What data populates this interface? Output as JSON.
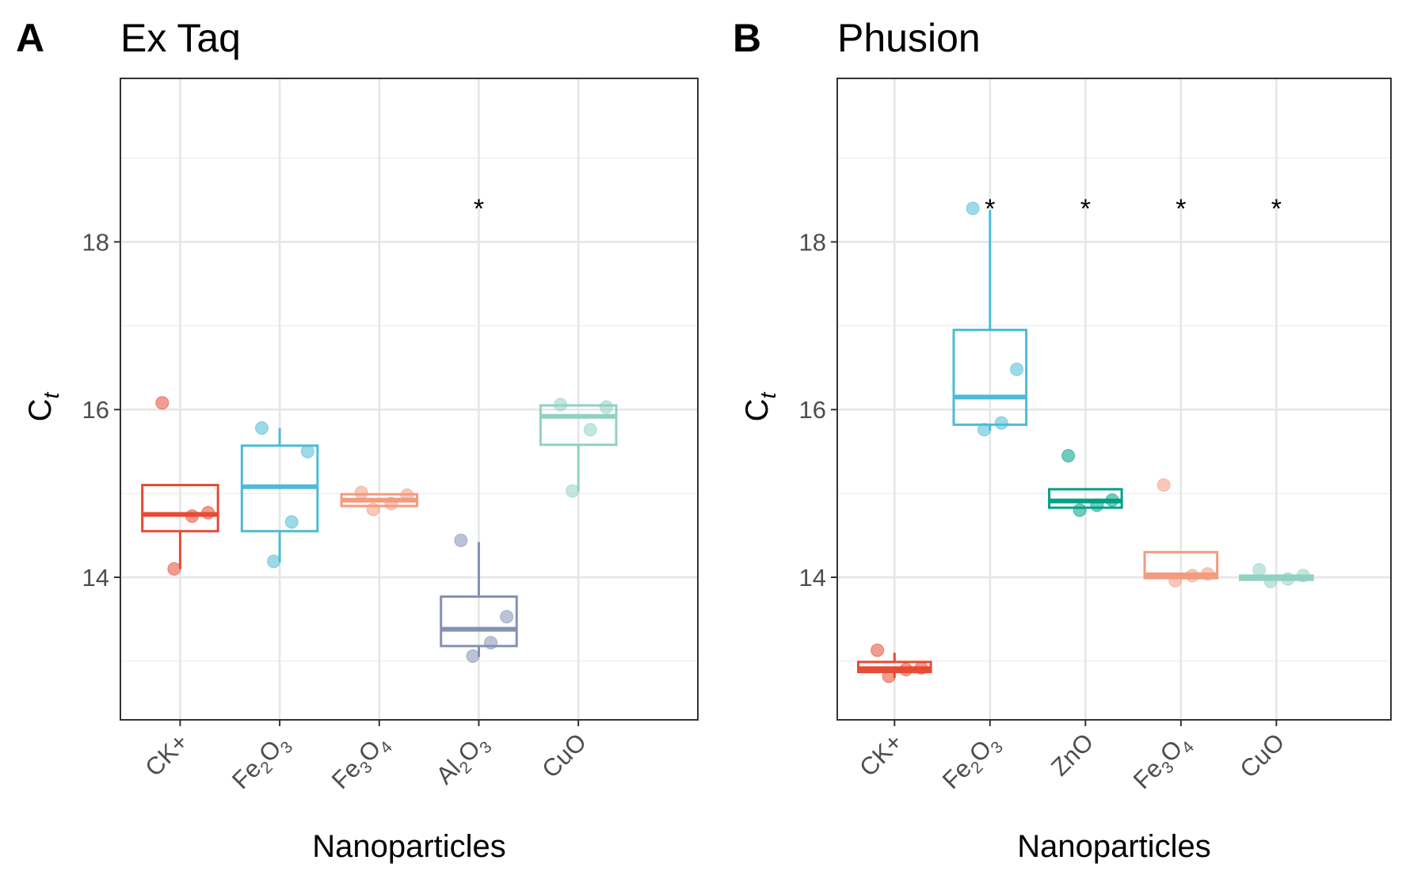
{
  "chart_data": [
    {
      "type": "box",
      "panel_letter": "A",
      "title": "Ex Taq",
      "xlabel": "Nanoparticles",
      "ylabel_main": "C",
      "ylabel_sub": "t",
      "ylim": [
        12.3,
        19.95
      ],
      "yticks": [
        14,
        16,
        18
      ],
      "ytick_labels": [
        "14",
        "16",
        "18"
      ],
      "grid": true,
      "categories": [
        {
          "label": "CK+",
          "main": "CK+",
          "subs": []
        },
        {
          "label": "Fe2O3",
          "main": "Fe",
          "subs": [
            "2",
            "O",
            "3"
          ]
        },
        {
          "label": "Fe3O4",
          "main": "Fe",
          "subs": [
            "3",
            "O",
            "4"
          ]
        },
        {
          "label": "Al2O3",
          "main": "Al",
          "subs": [
            "2",
            "O",
            "3"
          ]
        },
        {
          "label": "CuO",
          "main": "CuO",
          "subs": []
        }
      ],
      "boxes": [
        {
          "category": "CK+",
          "color": "#E64B35",
          "q1": 14.55,
          "median": 14.75,
          "q3": 15.1,
          "whisker_low": 14.1,
          "whisker_high": 15.1,
          "points": [
            16.08,
            14.77,
            14.73,
            14.1
          ],
          "significant": false
        },
        {
          "category": "Fe2O3",
          "color": "#4DBBD5",
          "q1": 14.55,
          "median": 15.08,
          "q3": 15.57,
          "whisker_low": 14.18,
          "whisker_high": 15.78,
          "points": [
            15.78,
            15.5,
            14.66,
            14.19
          ],
          "significant": false
        },
        {
          "category": "Fe3O4",
          "color": "#F39B7F",
          "q1": 14.85,
          "median": 14.92,
          "q3": 14.99,
          "whisker_low": 14.85,
          "whisker_high": 14.99,
          "points": [
            15.01,
            14.98,
            14.88,
            14.81
          ],
          "significant": false
        },
        {
          "category": "Al2O3",
          "color": "#8491B4",
          "q1": 13.18,
          "median": 13.38,
          "q3": 13.77,
          "whisker_low": 13.05,
          "whisker_high": 14.42,
          "points": [
            14.44,
            13.53,
            13.22,
            13.06
          ],
          "significant": true
        },
        {
          "category": "CuO",
          "color": "#91D1C2",
          "q1": 15.58,
          "median": 15.92,
          "q3": 16.05,
          "whisker_low": 15.02,
          "whisker_high": 16.05,
          "points": [
            16.06,
            16.03,
            15.76,
            15.03
          ],
          "significant": false
        }
      ],
      "significance_marker": "*"
    },
    {
      "type": "box",
      "panel_letter": "B",
      "title": "Phusion",
      "xlabel": "Nanoparticles",
      "ylabel_main": "C",
      "ylabel_sub": "t",
      "ylim": [
        12.3,
        19.95
      ],
      "yticks": [
        14,
        16,
        18
      ],
      "ytick_labels": [
        "14",
        "16",
        "18"
      ],
      "grid": true,
      "categories": [
        {
          "label": "CK+",
          "main": "CK+",
          "subs": []
        },
        {
          "label": "Fe2O3",
          "main": "Fe",
          "subs": [
            "2",
            "O",
            "3"
          ]
        },
        {
          "label": "ZnO",
          "main": "ZnO",
          "subs": []
        },
        {
          "label": "Fe3O4",
          "main": "Fe",
          "subs": [
            "3",
            "O",
            "4"
          ]
        },
        {
          "label": "CuO",
          "main": "CuO",
          "subs": []
        }
      ],
      "boxes": [
        {
          "category": "CK+",
          "color": "#E64B35",
          "q1": 12.87,
          "median": 12.91,
          "q3": 12.99,
          "whisker_low": 12.8,
          "whisker_high": 13.1,
          "points": [
            13.13,
            12.92,
            12.9,
            12.82
          ],
          "significant": false
        },
        {
          "category": "Fe2O3",
          "color": "#4DBBD5",
          "q1": 15.82,
          "median": 16.15,
          "q3": 16.95,
          "whisker_low": 15.75,
          "whisker_high": 18.38,
          "points": [
            18.4,
            16.48,
            15.84,
            15.76
          ],
          "significant": true
        },
        {
          "category": "ZnO",
          "color": "#00A087",
          "q1": 14.83,
          "median": 14.91,
          "q3": 15.05,
          "whisker_low": 14.83,
          "whisker_high": 15.05,
          "points": [
            15.45,
            14.92,
            14.86,
            14.8
          ],
          "significant": true
        },
        {
          "category": "Fe3O4",
          "color": "#F39B7F",
          "q1": 13.99,
          "median": 14.03,
          "q3": 14.3,
          "whisker_low": 13.99,
          "whisker_high": 14.3,
          "points": [
            15.1,
            14.04,
            14.02,
            13.96
          ],
          "significant": true
        },
        {
          "category": "CuO",
          "color": "#91D1C2",
          "q1": 13.97,
          "median": 14.0,
          "q3": 14.02,
          "whisker_low": 13.97,
          "whisker_high": 14.02,
          "points": [
            14.09,
            14.02,
            13.98,
            13.95
          ],
          "significant": true
        }
      ],
      "significance_marker": "*"
    }
  ]
}
